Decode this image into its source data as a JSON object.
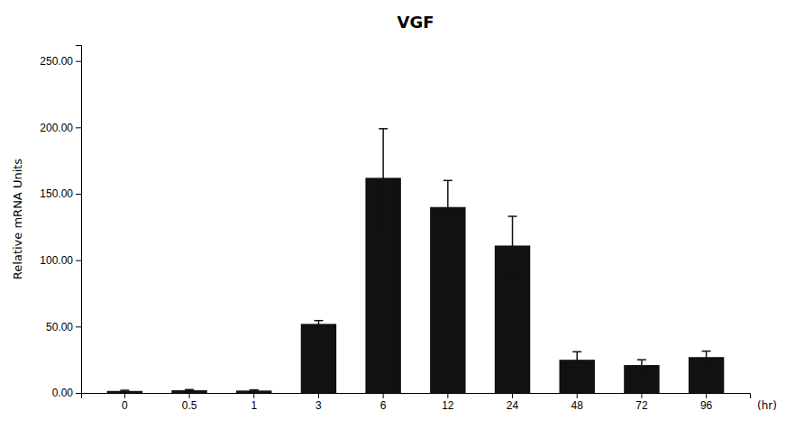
{
  "chart_data": {
    "type": "bar",
    "title": "VGF",
    "xlabel": "(hr)",
    "ylabel": "Relative mRNA Units",
    "categories": [
      "0",
      "0.5",
      "1",
      "3",
      "6",
      "12",
      "24",
      "48",
      "72",
      "96"
    ],
    "values": [
      1.5,
      2.0,
      1.8,
      52.0,
      162.0,
      140.0,
      111.0,
      25.0,
      21.0,
      27.0
    ],
    "errors": [
      0.5,
      0.5,
      0.5,
      2.5,
      37.0,
      20.0,
      22.0,
      6.0,
      4.0,
      4.5
    ],
    "color": "#111111",
    "ylim": [
      0,
      262
    ],
    "yticks": [
      {
        "value": 0,
        "label": "0.00"
      },
      {
        "value": 50,
        "label": "50.00"
      },
      {
        "value": 100,
        "label": "100.00"
      },
      {
        "value": 150,
        "label": "150.00"
      },
      {
        "value": 200,
        "label": "200.00"
      },
      {
        "value": 250,
        "label": "250.00"
      }
    ],
    "grid": false
  }
}
